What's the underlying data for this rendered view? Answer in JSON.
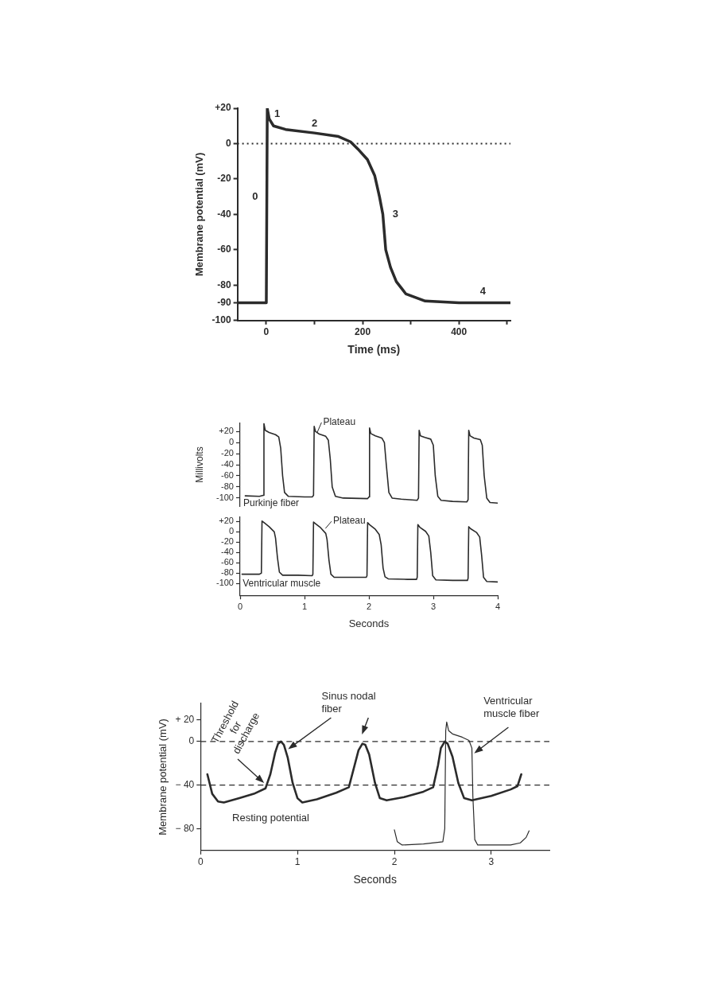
{
  "chart_data": [
    {
      "type": "line",
      "xlabel": "Time (ms)",
      "ylabel": "Membrane potential (mV)",
      "xlim": [
        -60,
        507
      ],
      "ylim": [
        -100,
        20
      ],
      "xticks": [
        0,
        {
          "value": 100,
          "label": null
        },
        200,
        {
          "value": 300,
          "label": null
        },
        400,
        {
          "value": 500,
          "label": null
        }
      ],
      "yticks": [
        {
          "value": 20,
          "label": "+20"
        },
        0,
        -20,
        -40,
        -60,
        -80,
        -90,
        -100
      ],
      "ref_lines": [
        {
          "axis": "y",
          "value": 0,
          "line_style": "dotted"
        }
      ],
      "annotations": [
        {
          "text": "0",
          "x": 0,
          "y": -30
        },
        {
          "text": "1",
          "x": 6,
          "y": 14
        },
        {
          "text": "2",
          "x": 100,
          "y": 6
        },
        {
          "text": "3",
          "x": 245,
          "y": -40
        },
        {
          "text": "4",
          "x": 450,
          "y": -90
        }
      ],
      "series": [
        {
          "color": "#2b2b2b",
          "x": [
            -60,
            0,
            2,
            6,
            15,
            40,
            100,
            150,
            175,
            190,
            210,
            225,
            235,
            242,
            248,
            258,
            270,
            290,
            330,
            400,
            507
          ],
          "values": [
            -90,
            -90,
            20,
            14,
            10,
            8,
            6,
            4,
            1,
            -3,
            -9,
            -18,
            -30,
            -40,
            -60,
            -70,
            -78,
            -85,
            -89,
            -90,
            -90
          ]
        }
      ]
    },
    {
      "type": "line",
      "ylabel": "Millivolts",
      "xlim": [
        0,
        4
      ],
      "ylim": [
        -115,
        35
      ],
      "tick_labels": "y",
      "yticks": [
        {
          "value": 20,
          "label": "+20"
        },
        0,
        -20,
        -40,
        -60,
        -80,
        -100
      ],
      "annotations": [
        {
          "text": "Plateau",
          "x": 1.17,
          "y": 16
        }
      ],
      "series": [
        {
          "name": "Purkinje fiber",
          "color": "#2b2b2b",
          "x": [
            0.08,
            0.3,
            0.36,
            0.37,
            0.39,
            0.45,
            0.55,
            0.6,
            0.63,
            0.66,
            0.69,
            0.75,
            1.0,
            1.12,
            1.14,
            1.15,
            1.17,
            1.23,
            1.33,
            1.37,
            1.4,
            1.43,
            1.48,
            1.6,
            1.98,
            2.0,
            2.01,
            2.03,
            2.1,
            2.2,
            2.24,
            2.27,
            2.31,
            2.36,
            2.5,
            2.75,
            2.77,
            2.78,
            2.8,
            2.87,
            2.96,
            3.0,
            3.03,
            3.07,
            3.12,
            3.3,
            3.52,
            3.54,
            3.55,
            3.57,
            3.63,
            3.73,
            3.76,
            3.79,
            3.83,
            3.88,
            4.0
          ],
          "values": [
            -96,
            -97,
            -95,
            34,
            22,
            18,
            14,
            10,
            -10,
            -60,
            -90,
            -97,
            -98,
            -98,
            -95,
            29,
            20,
            15,
            11,
            4,
            -30,
            -80,
            -97,
            -100,
            -101,
            -98,
            26,
            16,
            12,
            8,
            0,
            -40,
            -90,
            -100,
            -102,
            -104,
            -100,
            22,
            12,
            9,
            6,
            -5,
            -60,
            -97,
            -104,
            -106,
            -107,
            -103,
            22,
            12,
            8,
            5,
            -5,
            -60,
            -100,
            -108,
            -109
          ]
        }
      ]
    },
    {
      "type": "line",
      "xlabel": "Seconds",
      "xlim": [
        0,
        4
      ],
      "ylim": [
        -123,
        29
      ],
      "xticks": [
        0,
        1,
        2,
        3,
        4
      ],
      "yticks": [
        {
          "value": 20,
          "label": "+20"
        },
        0,
        -20,
        -40,
        -60,
        -80,
        -100
      ],
      "annotations": [
        {
          "text": "Plateau",
          "x": 1.3,
          "y": 5
        }
      ],
      "series": [
        {
          "name": "Ventricular muscle",
          "color": "#2b2b2b",
          "x": [
            0.03,
            0.3,
            0.33,
            0.34,
            0.37,
            0.45,
            0.53,
            0.55,
            0.58,
            0.61,
            0.66,
            0.9,
            1.12,
            1.13,
            1.14,
            1.17,
            1.25,
            1.33,
            1.35,
            1.38,
            1.41,
            1.46,
            1.7,
            1.96,
            1.97,
            1.98,
            2.01,
            2.1,
            2.16,
            2.19,
            2.22,
            2.25,
            2.3,
            2.6,
            2.74,
            2.75,
            2.76,
            2.79,
            2.88,
            2.93,
            2.96,
            2.99,
            3.04,
            3.3,
            3.53,
            3.54,
            3.55,
            3.58,
            3.67,
            3.72,
            3.75,
            3.78,
            3.83,
            4.0
          ],
          "values": [
            -82,
            -82,
            -80,
            21,
            18,
            10,
            0,
            -12,
            -50,
            -78,
            -84,
            -84,
            -85,
            -82,
            19,
            16,
            8,
            -3,
            -15,
            -55,
            -82,
            -88,
            -88,
            -88,
            -85,
            18,
            14,
            5,
            -5,
            -25,
            -70,
            -87,
            -91,
            -92,
            -92,
            -88,
            14,
            9,
            1,
            -8,
            -40,
            -85,
            -93,
            -94,
            -94,
            -90,
            10,
            6,
            -1,
            -10,
            -45,
            -88,
            -96,
            -97
          ]
        }
      ]
    },
    {
      "type": "line",
      "xlabel": "Seconds",
      "ylabel": "Membrane potential (mV)",
      "xlim": [
        0,
        3.6
      ],
      "ylim": [
        -100,
        35
      ],
      "xticks": [
        0,
        1,
        2,
        3
      ],
      "yticks": [
        {
          "value": 20,
          "label": "+ 20"
        },
        0,
        {
          "value": -40,
          "label": "− 40"
        },
        {
          "value": -80,
          "label": "− 80"
        }
      ],
      "ref_lines": [
        {
          "axis": "y",
          "value": 0,
          "line_style": "dashed"
        },
        {
          "axis": "y",
          "value": -40,
          "line_style": "dashed"
        }
      ],
      "annotations": [
        {
          "text": "Threshold for discharge",
          "x": 0.67,
          "y": -40
        },
        {
          "text": "Resting potential",
          "x": 0.24,
          "y": -56
        }
      ],
      "series": [
        {
          "name": "Sinus nodal fiber",
          "color": "#2b2b2b",
          "x": [
            0.07,
            0.12,
            0.18,
            0.24,
            0.4,
            0.55,
            0.67,
            0.72,
            0.77,
            0.8,
            0.83,
            0.86,
            0.9,
            0.95,
            1.0,
            1.05,
            1.2,
            1.4,
            1.53,
            1.58,
            1.63,
            1.67,
            1.7,
            1.74,
            1.8,
            1.85,
            1.92,
            2.1,
            2.3,
            2.4,
            2.45,
            2.48,
            2.52,
            2.55,
            2.6,
            2.66,
            2.72,
            2.8,
            3.0,
            3.2,
            3.27,
            3.31
          ],
          "values": [
            -30,
            -48,
            -55,
            -56,
            -52,
            -48,
            -43,
            -30,
            -10,
            -2,
            0,
            -3,
            -15,
            -38,
            -52,
            -56,
            -53,
            -47,
            -42,
            -25,
            -8,
            -2,
            -3,
            -12,
            -38,
            -52,
            -54,
            -51,
            -46,
            -42,
            -22,
            -6,
            0,
            -2,
            -14,
            -38,
            -52,
            -54,
            -50,
            -44,
            -41,
            -30
          ]
        },
        {
          "name": "Ventricular muscle fiber",
          "color": "#2b2b2b",
          "x": [
            2.0,
            2.03,
            2.08,
            2.3,
            2.5,
            2.52,
            2.53,
            2.54,
            2.56,
            2.6,
            2.7,
            2.77,
            2.8,
            2.81,
            2.83,
            2.86,
            3.2,
            3.3,
            3.36,
            3.39
          ],
          "values": [
            -81,
            -92,
            -95,
            -94,
            -92,
            -80,
            10,
            18,
            10,
            7,
            4,
            1,
            -6,
            -50,
            -90,
            -95,
            -95,
            -93,
            -88,
            -82
          ]
        }
      ]
    }
  ]
}
